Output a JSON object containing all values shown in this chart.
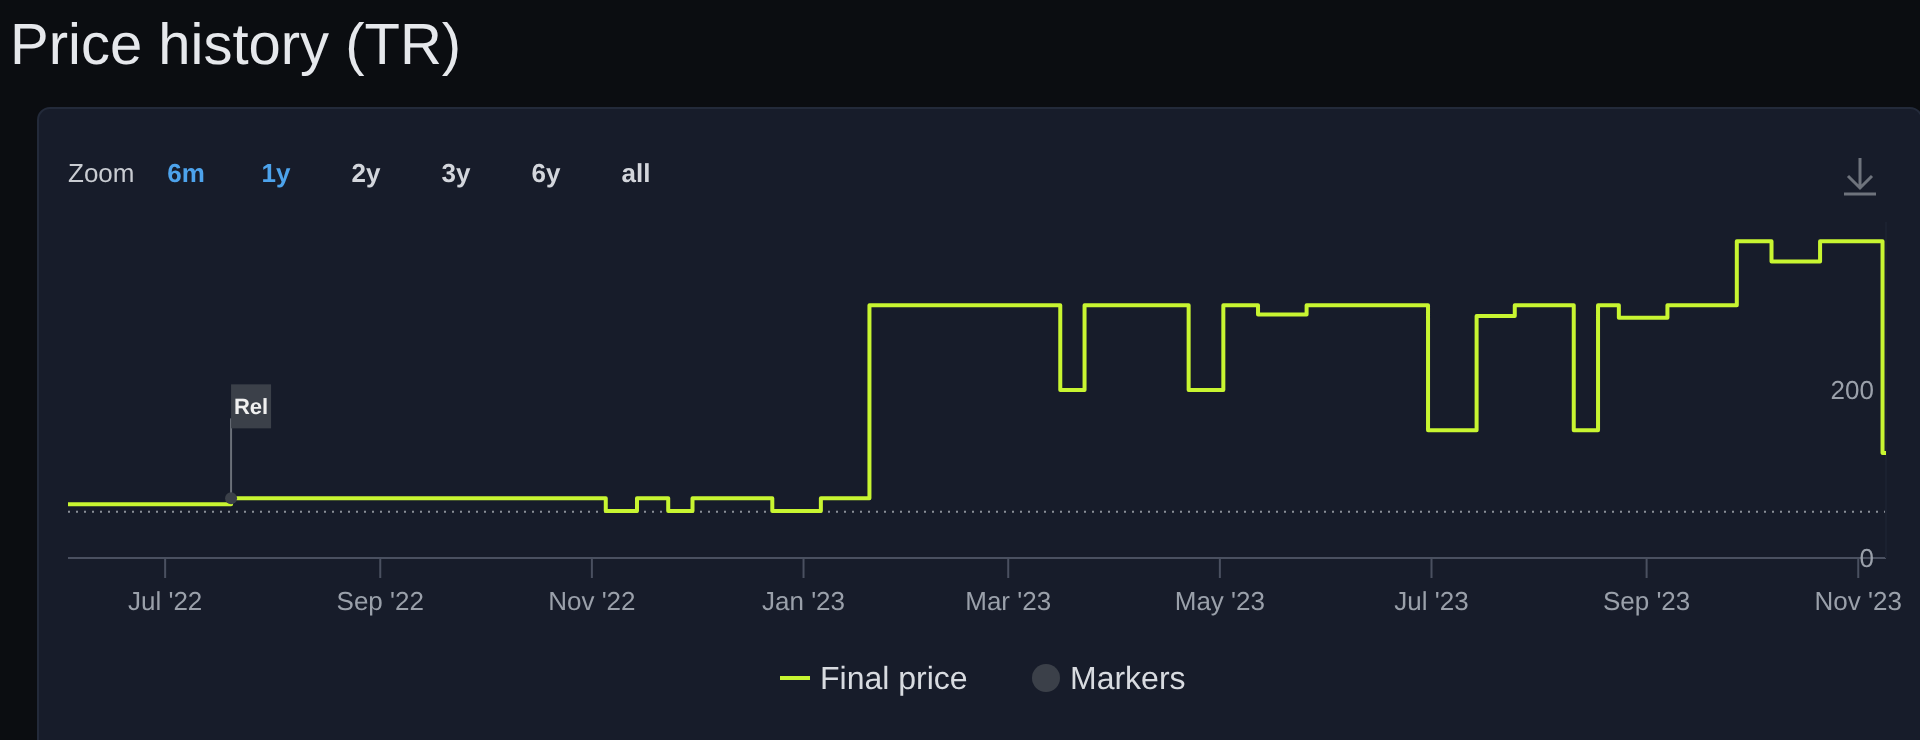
{
  "chart_data": {
    "type": "step",
    "title": "Price history (TR)",
    "annotations": [
      "Zoom",
      "6m",
      "1y",
      "2y",
      "3y",
      "6y",
      "all",
      {
        "text": "Rel",
        "x": "2022-07-20",
        "y": 71
      }
    ],
    "series": [
      {
        "name": "Final price",
        "color": "#c8f531",
        "x": [
          "2022-06-03",
          "2022-07-20",
          "2022-11-05",
          "2022-11-14",
          "2022-11-23",
          "2022-11-30",
          "2022-12-23",
          "2023-01-06",
          "2023-01-20",
          "2023-03-16",
          "2023-03-23",
          "2023-04-22",
          "2023-05-02",
          "2023-05-12",
          "2023-05-26",
          "2023-06-30",
          "2023-07-14",
          "2023-07-25",
          "2023-08-11",
          "2023-08-18",
          "2023-08-24",
          "2023-09-07",
          "2023-09-27",
          "2023-10-07",
          "2023-10-21",
          "2023-11-08",
          "2023-11-09"
        ],
        "values": [
          64,
          71,
          56,
          71,
          56,
          71,
          56,
          71,
          301,
          200,
          301,
          200,
          301,
          290,
          301,
          152,
          288,
          301,
          152,
          301,
          286,
          301,
          377,
          353,
          377,
          125,
          125
        ]
      },
      {
        "name": "Markers",
        "type": "scatter",
        "color": "#3b4049",
        "x": [
          "2022-07-20"
        ],
        "values": [
          71
        ]
      }
    ],
    "xlim": [
      "2022-06-03",
      "2023-11-09"
    ],
    "xticks": [
      {
        "value": "2022-07-01",
        "label": "Jul '22"
      },
      {
        "value": "2022-09-01",
        "label": "Sep '22"
      },
      {
        "value": "2022-11-01",
        "label": "Nov '22"
      },
      {
        "value": "2023-01-01",
        "label": "Jan '23"
      },
      {
        "value": "2023-03-01",
        "label": "Mar '23"
      },
      {
        "value": "2023-05-01",
        "label": "May '23"
      },
      {
        "value": "2023-07-01",
        "label": "Jul '23"
      },
      {
        "value": "2023-09-01",
        "label": "Sep '23"
      },
      {
        "value": "2023-11-01",
        "label": "Nov '23"
      }
    ],
    "ylim": [
      0,
      400
    ],
    "yticks": [
      0,
      200
    ],
    "ref_lines": [
      {
        "axis": "y",
        "value": 55,
        "line_style": "dotted",
        "color": "#8a8f98"
      }
    ],
    "grid": false,
    "legend": "bottom"
  }
}
